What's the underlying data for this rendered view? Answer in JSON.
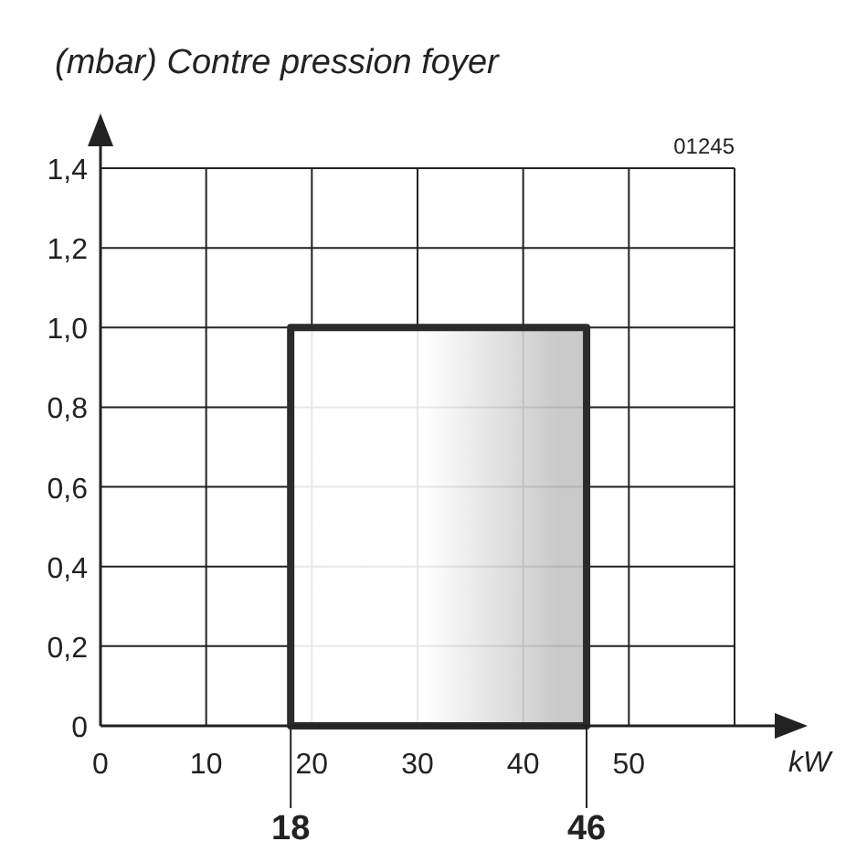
{
  "chart_data": {
    "type": "area",
    "title": "(mbar) Contre pression foyer",
    "xlabel": "kW",
    "xlim": [
      0,
      60
    ],
    "xticks": [
      0,
      10,
      20,
      30,
      40,
      50,
      {
        "value": 60,
        "label": null
      }
    ],
    "ylim": [
      0,
      1.4
    ],
    "yticks": [
      {
        "value": 0,
        "label": "0"
      },
      {
        "value": 0.2,
        "label": "0,2"
      },
      {
        "value": 0.4,
        "label": "0,4"
      },
      {
        "value": 0.6,
        "label": "0,6"
      },
      {
        "value": 0.8,
        "label": "0,8"
      },
      {
        "value": 1,
        "label": "1,0"
      },
      {
        "value": 1.2,
        "label": "1,2"
      },
      {
        "value": 1.4,
        "label": "1,4"
      }
    ],
    "grid": true,
    "series": [
      {
        "color": "#c4c4c4",
        "x": [
          18,
          46
        ],
        "values": [
          1,
          1
        ]
      }
    ],
    "annotations": [
      "01245",
      {
        "text": "18",
        "x": 18,
        "y": 0
      },
      {
        "text": "46",
        "x": 46,
        "y": 0
      }
    ]
  }
}
